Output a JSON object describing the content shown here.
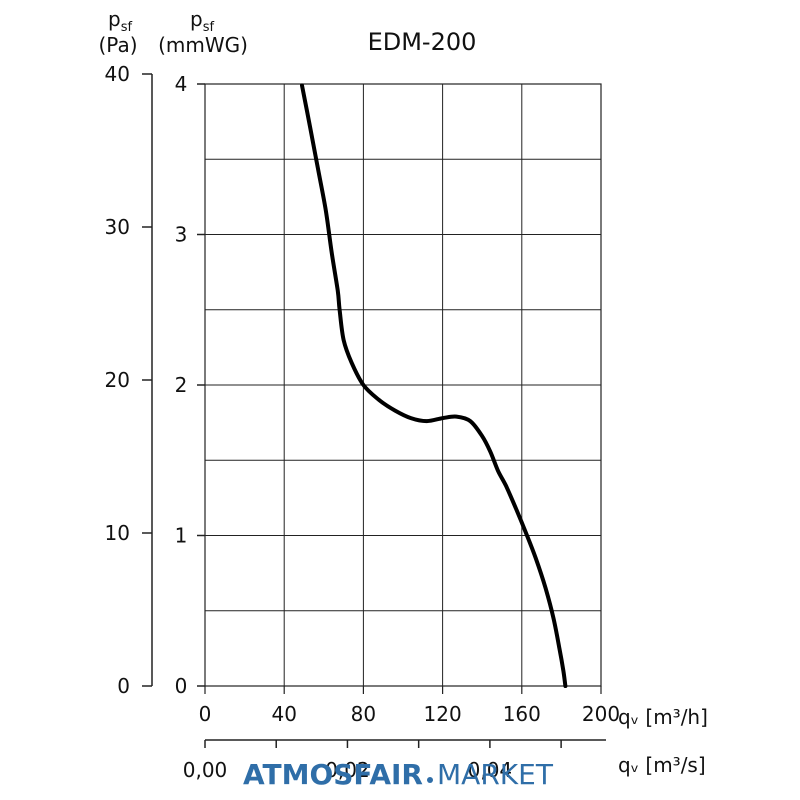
{
  "chart_data": {
    "type": "line",
    "title": "EDM-200",
    "y_axis_pa": {
      "label_symbol": "p",
      "label_sub": "sf",
      "unit": "(Pa)",
      "ticks": [
        40,
        30,
        20,
        10,
        0
      ],
      "range": [
        0,
        40
      ]
    },
    "y_axis_mmwg": {
      "label_symbol": "p",
      "label_sub": "sf",
      "unit": "(mmWG)",
      "ticks": [
        4,
        3,
        2,
        1,
        0
      ],
      "range": [
        0,
        4
      ]
    },
    "x_axis_m3h": {
      "label": "qᵥ [m³/h]",
      "ticks": [
        0,
        40,
        80,
        120,
        160,
        200
      ],
      "range": [
        0,
        200
      ]
    },
    "x_axis_m3s": {
      "label": "qᵥ [m³/s]",
      "ticks": [
        "0,00",
        "0,02",
        "0,04"
      ],
      "tick_values": [
        0,
        0.02,
        0.04
      ],
      "range": [
        0,
        0.0556
      ]
    },
    "grid": true,
    "series": [
      {
        "x": [
          49,
          53,
          57,
          61,
          64,
          67,
          68,
          70,
          74,
          80,
          88,
          96,
          104,
          112,
          120,
          127,
          134,
          140,
          144,
          148,
          152,
          157,
          162,
          167,
          172,
          176,
          179,
          181,
          182
        ],
        "y": [
          39.9,
          37.2,
          34.4,
          31.6,
          28.8,
          26.3,
          25.0,
          23.0,
          21.5,
          20.0,
          19.0,
          18.3,
          17.8,
          17.6,
          17.8,
          17.9,
          17.6,
          16.6,
          15.6,
          14.3,
          13.3,
          11.8,
          10.2,
          8.5,
          6.5,
          4.5,
          2.5,
          1.0,
          0
        ]
      }
    ]
  },
  "watermark": {
    "bold": "ATMOSFAIR",
    "light": "MARKET"
  }
}
